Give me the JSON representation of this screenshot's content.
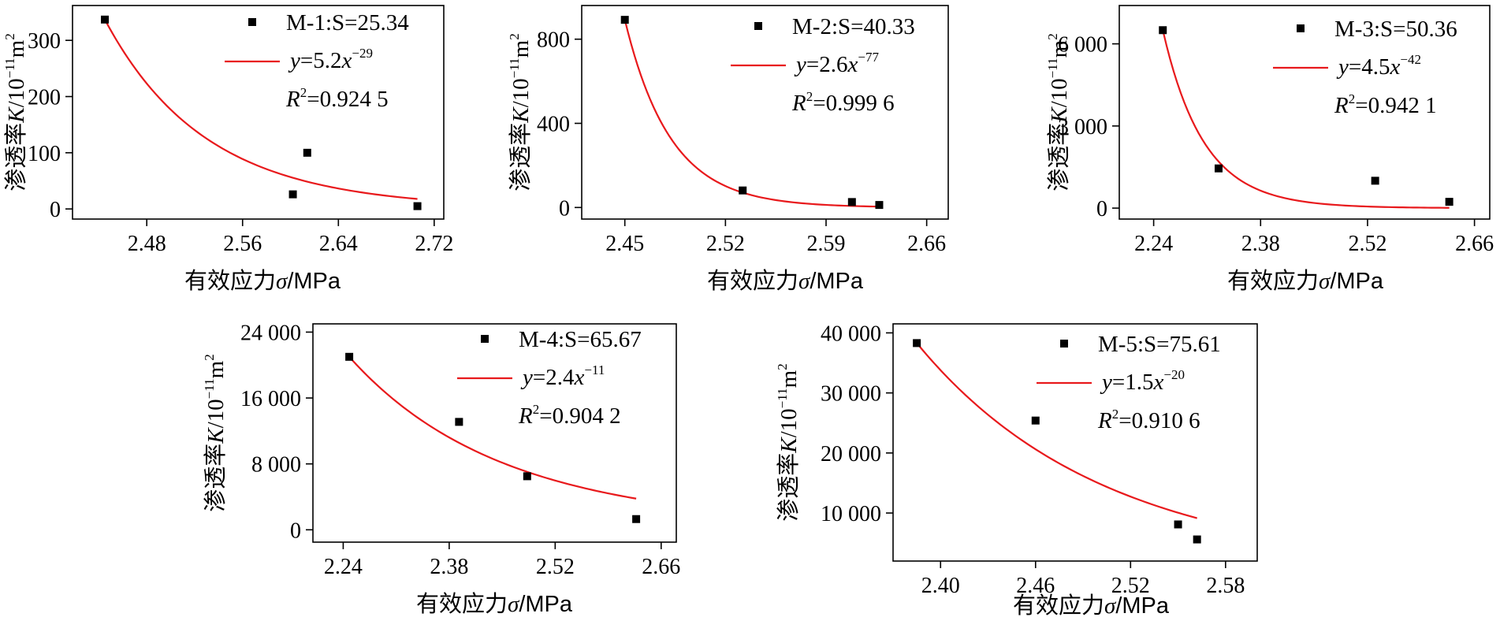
{
  "colors": {
    "fit_line": "#e8191c",
    "points": "#000000",
    "axis": "#000000"
  },
  "chart_data": [
    {
      "type": "scatter",
      "xlabel_prefix": "有效应力",
      "xlabel_symbol": "σ",
      "xlabel_unit": "/MPa",
      "ylabel_prefix": "渗透率",
      "ylabel_symbol": "K",
      "ylabel_unit_base": "/10",
      "ylabel_unit_exp": "−11",
      "ylabel_unit_tail": "m",
      "ylabel_unit_tail_exp": "2",
      "xlim": [
        2.418,
        2.728
      ],
      "ylim": [
        -18,
        362
      ],
      "xticks": [
        "2.48",
        "2.56",
        "2.64",
        "2.72"
      ],
      "xtick_values": [
        2.48,
        2.56,
        2.64,
        2.72
      ],
      "yticks": [
        "0",
        "100",
        "200",
        "300"
      ],
      "ytick_values": [
        0,
        100,
        200,
        300
      ],
      "series": [
        {
          "name": "M-1:S=25.34",
          "points": [
            [
              2.445,
              337
            ],
            [
              2.602,
              26
            ],
            [
              2.614,
              100
            ],
            [
              2.706,
              5
            ]
          ]
        },
        {
          "name": "y=5.2x−29",
          "kind": "fit",
          "coef": 5.2,
          "exp": -29,
          "x_range": [
            2.445,
            2.706
          ]
        }
      ],
      "legend": {
        "point_label": "M-1:S=25.34",
        "fit_y": "y",
        "fit_eq": "=5.2",
        "fit_x": "x",
        "fit_exp": "−29",
        "r2_r": "R",
        "r2_sup": "2",
        "r2_val": "=0.924 5"
      }
    },
    {
      "type": "scatter",
      "xlabel_prefix": "有效应力",
      "xlabel_symbol": "σ",
      "xlabel_unit": "/MPa",
      "ylabel_prefix": "渗透率",
      "ylabel_symbol": "K",
      "ylabel_unit_base": "/10",
      "ylabel_unit_exp": "−11",
      "ylabel_unit_tail": "m",
      "ylabel_unit_tail_exp": "2",
      "xlim": [
        2.42,
        2.675
      ],
      "ylim": [
        -55,
        960
      ],
      "xticks": [
        "2.45",
        "2.52",
        "2.59",
        "2.66"
      ],
      "xtick_values": [
        2.45,
        2.52,
        2.59,
        2.66
      ],
      "yticks": [
        "0",
        "400",
        "800"
      ],
      "ytick_values": [
        0,
        400,
        800
      ],
      "series": [
        {
          "name": "M-2:S=40.33",
          "points": [
            [
              2.45,
              892
            ],
            [
              2.532,
              81
            ],
            [
              2.608,
              26
            ],
            [
              2.627,
              12
            ]
          ]
        },
        {
          "name": "y=2.6x−77",
          "kind": "fit",
          "coef": 2.6,
          "exp": -77,
          "x_range": [
            2.45,
            2.627
          ]
        }
      ],
      "legend": {
        "point_label": "M-2:S=40.33",
        "fit_y": "y",
        "fit_eq": "=2.6",
        "fit_x": "x",
        "fit_exp": "−77",
        "r2_r": "R",
        "r2_sup": "2",
        "r2_val": "=0.999 6"
      }
    },
    {
      "type": "scatter",
      "xlabel_prefix": "有效应力",
      "xlabel_symbol": "σ",
      "xlabel_unit": "/MPa",
      "ylabel_prefix": "渗透率",
      "ylabel_symbol": "K",
      "ylabel_unit_base": "/10",
      "ylabel_unit_exp": "−11",
      "ylabel_unit_tail": "m",
      "ylabel_unit_tail_exp": "2",
      "xlim": [
        2.195,
        2.68
      ],
      "ylim": [
        -400,
        7400
      ],
      "xticks": [
        "2.24",
        "2.38",
        "2.52",
        "2.66"
      ],
      "xtick_values": [
        2.24,
        2.38,
        2.52,
        2.66
      ],
      "yticks": [
        "0",
        "3 000",
        "6 000"
      ],
      "ytick_values": [
        0,
        3000,
        6000
      ],
      "series": [
        {
          "name": "M-3:S=50.36",
          "points": [
            [
              2.252,
              6500
            ],
            [
              2.325,
              1450
            ],
            [
              2.53,
              1000
            ],
            [
              2.627,
              230
            ]
          ]
        },
        {
          "name": "y=4.5x−42",
          "kind": "fit",
          "coef": 4.5,
          "exp": -42,
          "x_range": [
            2.252,
            2.627
          ]
        }
      ],
      "legend": {
        "point_label": "M-3:S=50.36",
        "fit_y": "y",
        "fit_eq": "=4.5",
        "fit_x": "x",
        "fit_exp": "−42",
        "r2_r": "R",
        "r2_sup": "2",
        "r2_val": "=0.942 1"
      }
    },
    {
      "type": "scatter",
      "xlabel_prefix": "有效应力",
      "xlabel_symbol": "σ",
      "xlabel_unit": "/MPa",
      "ylabel_prefix": "渗透率",
      "ylabel_symbol": "K",
      "ylabel_unit_base": "/10",
      "ylabel_unit_exp": "−11",
      "ylabel_unit_tail": "m",
      "ylabel_unit_tail_exp": "2",
      "xlim": [
        2.2,
        2.68
      ],
      "ylim": [
        -1500,
        25000
      ],
      "xticks": [
        "2.24",
        "2.38",
        "2.52",
        "2.66"
      ],
      "xtick_values": [
        2.24,
        2.38,
        2.52,
        2.66
      ],
      "yticks": [
        "0",
        "8 000",
        "16 000",
        "24 000"
      ],
      "ytick_values": [
        0,
        8000,
        16000,
        24000
      ],
      "series": [
        {
          "name": "M-4:S=65.67",
          "points": [
            [
              2.248,
              21000
            ],
            [
              2.393,
              13100
            ],
            [
              2.483,
              6500
            ],
            [
              2.627,
              1300
            ]
          ]
        },
        {
          "name": "y=2.4x−11",
          "kind": "fit",
          "coef": 2.4,
          "exp": -11,
          "x_range": [
            2.248,
            2.627
          ]
        }
      ],
      "legend": {
        "point_label": "M-4:S=65.67",
        "fit_y": "y",
        "fit_eq": "=2.4",
        "fit_x": "x",
        "fit_exp": "−11",
        "r2_r": "R",
        "r2_sup": "2",
        "r2_val": "=0.904 2"
      }
    },
    {
      "type": "scatter",
      "xlabel_prefix": "有效应力",
      "xlabel_symbol": "σ",
      "xlabel_unit": "/MPa",
      "ylabel_prefix": "渗透率",
      "ylabel_symbol": "K",
      "ylabel_unit_base": "/10",
      "ylabel_unit_exp": "−11",
      "ylabel_unit_tail": "m",
      "ylabel_unit_tail_exp": "2",
      "xlim": [
        2.37,
        2.6
      ],
      "ylim": [
        2000,
        41500
      ],
      "xticks": [
        "2.40",
        "2.46",
        "2.52",
        "2.58"
      ],
      "xtick_values": [
        2.4,
        2.46,
        2.52,
        2.58
      ],
      "yticks": [
        "10 000",
        "20 000",
        "30 000",
        "40 000"
      ],
      "ytick_values": [
        10000,
        20000,
        30000,
        40000
      ],
      "series": [
        {
          "name": "M-5:S=75.61",
          "points": [
            [
              2.385,
              38300
            ],
            [
              2.46,
              25400
            ],
            [
              2.55,
              8100
            ],
            [
              2.562,
              5600
            ]
          ]
        },
        {
          "name": "y=1.5x−20",
          "kind": "fit",
          "coef": 1.5,
          "exp": -20,
          "x_range": [
            2.385,
            2.562
          ]
        }
      ],
      "legend": {
        "point_label": "M-5:S=75.61",
        "fit_y": "y",
        "fit_eq": "=1.5",
        "fit_x": "x",
        "fit_exp": "−20",
        "r2_r": "R",
        "r2_sup": "2",
        "r2_val": "=0.910 6"
      }
    }
  ]
}
